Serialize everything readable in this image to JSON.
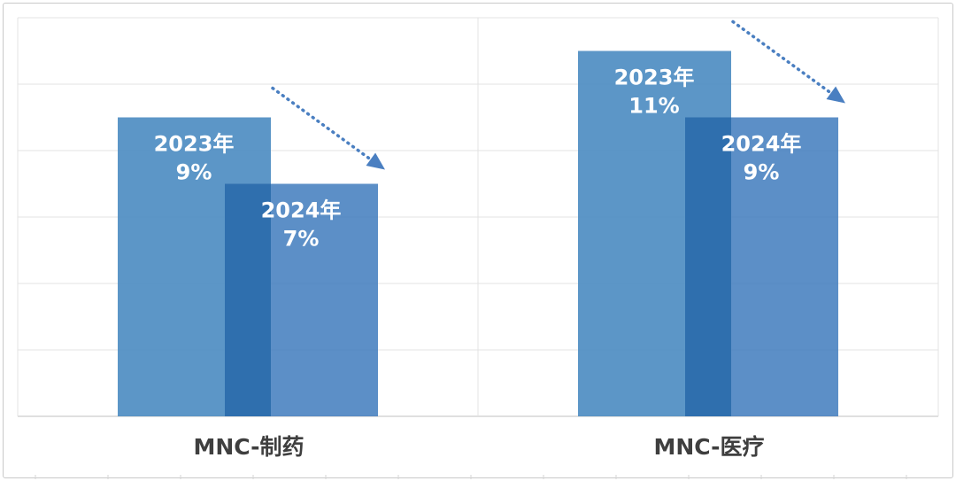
{
  "chart_data": {
    "type": "bar",
    "categories": [
      "MNC-制药",
      "MNC-医疗"
    ],
    "series": [
      {
        "year": "2023年",
        "values": [
          "9%",
          "11%"
        ],
        "numeric": [
          9,
          11
        ],
        "color": "#4a8bc1"
      },
      {
        "year": "2024年",
        "values": [
          "7%",
          "9%"
        ],
        "numeric": [
          7,
          9
        ],
        "color": "#3f7bbd"
      }
    ],
    "overlap_color": "#2f6fae",
    "trend_arrow_color": "#4a7fc1",
    "ylim": [
      0,
      12
    ],
    "grid": true,
    "legend": "none",
    "title": "",
    "xlabel": "",
    "ylabel": ""
  }
}
